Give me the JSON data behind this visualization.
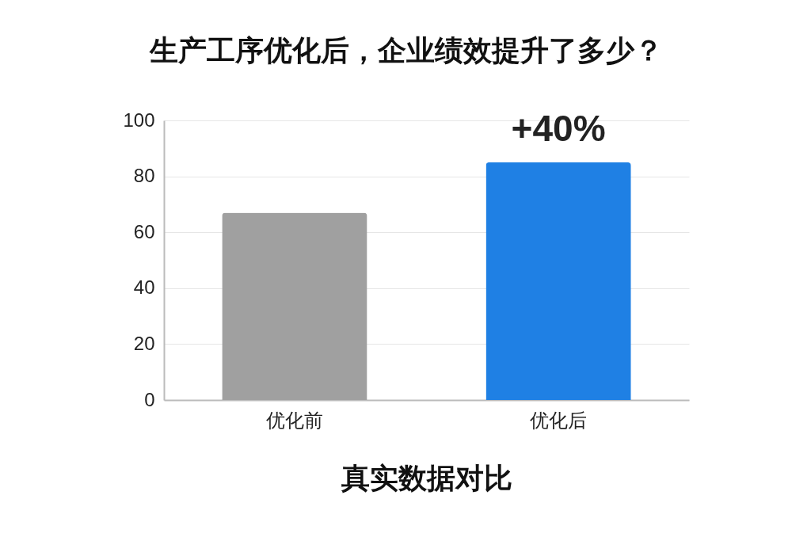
{
  "chart_data": {
    "type": "bar",
    "title": "生产工序优化后，企业绩效提升了多少？",
    "xlabel": "真实数据对比",
    "categories": [
      "优化前",
      "优化后"
    ],
    "values": [
      67,
      85
    ],
    "colors": [
      "#a0a0a0",
      "#1f80e4"
    ],
    "ylim": [
      0,
      100
    ],
    "yticks": [
      0,
      20,
      40,
      60,
      80,
      100
    ],
    "grid": "y",
    "annotations": [
      "+40%"
    ]
  }
}
